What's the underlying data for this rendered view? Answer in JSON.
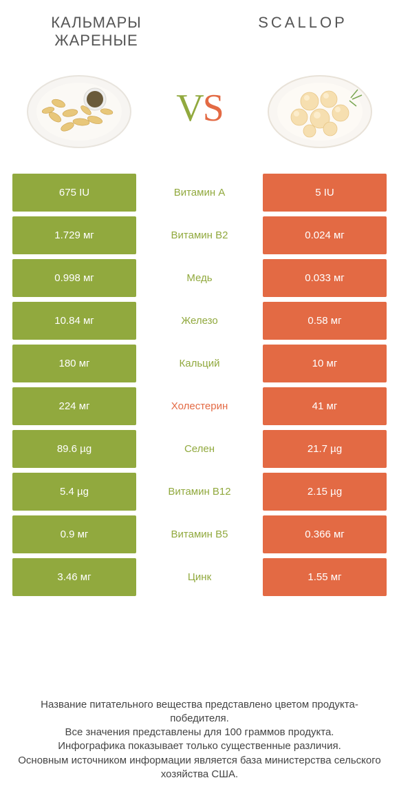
{
  "colors": {
    "left_bg": "#91a93e",
    "right_bg": "#e36a44",
    "mid_default": "#91a93e",
    "mid_alt": "#e36a44",
    "text_white": "#ffffff"
  },
  "header": {
    "left_title": "Кальмары жареные",
    "right_title": "Scallop",
    "vs_v": "V",
    "vs_s": "S"
  },
  "rows": [
    {
      "left": "675 IU",
      "mid": "Витамин A",
      "mid_color": "#91a93e",
      "right": "5 IU"
    },
    {
      "left": "1.729 мг",
      "mid": "Витамин B2",
      "mid_color": "#91a93e",
      "right": "0.024 мг"
    },
    {
      "left": "0.998 мг",
      "mid": "Медь",
      "mid_color": "#91a93e",
      "right": "0.033 мг"
    },
    {
      "left": "10.84 мг",
      "mid": "Железо",
      "mid_color": "#91a93e",
      "right": "0.58 мг"
    },
    {
      "left": "180 мг",
      "mid": "Кальций",
      "mid_color": "#91a93e",
      "right": "10 мг"
    },
    {
      "left": "224 мг",
      "mid": "Холестерин",
      "mid_color": "#e36a44",
      "right": "41 мг"
    },
    {
      "left": "89.6 µg",
      "mid": "Селен",
      "mid_color": "#91a93e",
      "right": "21.7 µg"
    },
    {
      "left": "5.4 µg",
      "mid": "Витамин B12",
      "mid_color": "#91a93e",
      "right": "2.15 µg"
    },
    {
      "left": "0.9 мг",
      "mid": "Витамин B5",
      "mid_color": "#91a93e",
      "right": "0.366 мг"
    },
    {
      "left": "3.46 мг",
      "mid": "Цинк",
      "mid_color": "#91a93e",
      "right": "1.55 мг"
    }
  ],
  "footer": {
    "line1": "Название питательного вещества представлено цветом продукта-победителя.",
    "line2": "Все значения представлены для 100 граммов продукта.",
    "line3": "Инфографика показывает только существенные различия.",
    "line4": "Основным источником информации является база министерства сельского хозяйства США."
  }
}
